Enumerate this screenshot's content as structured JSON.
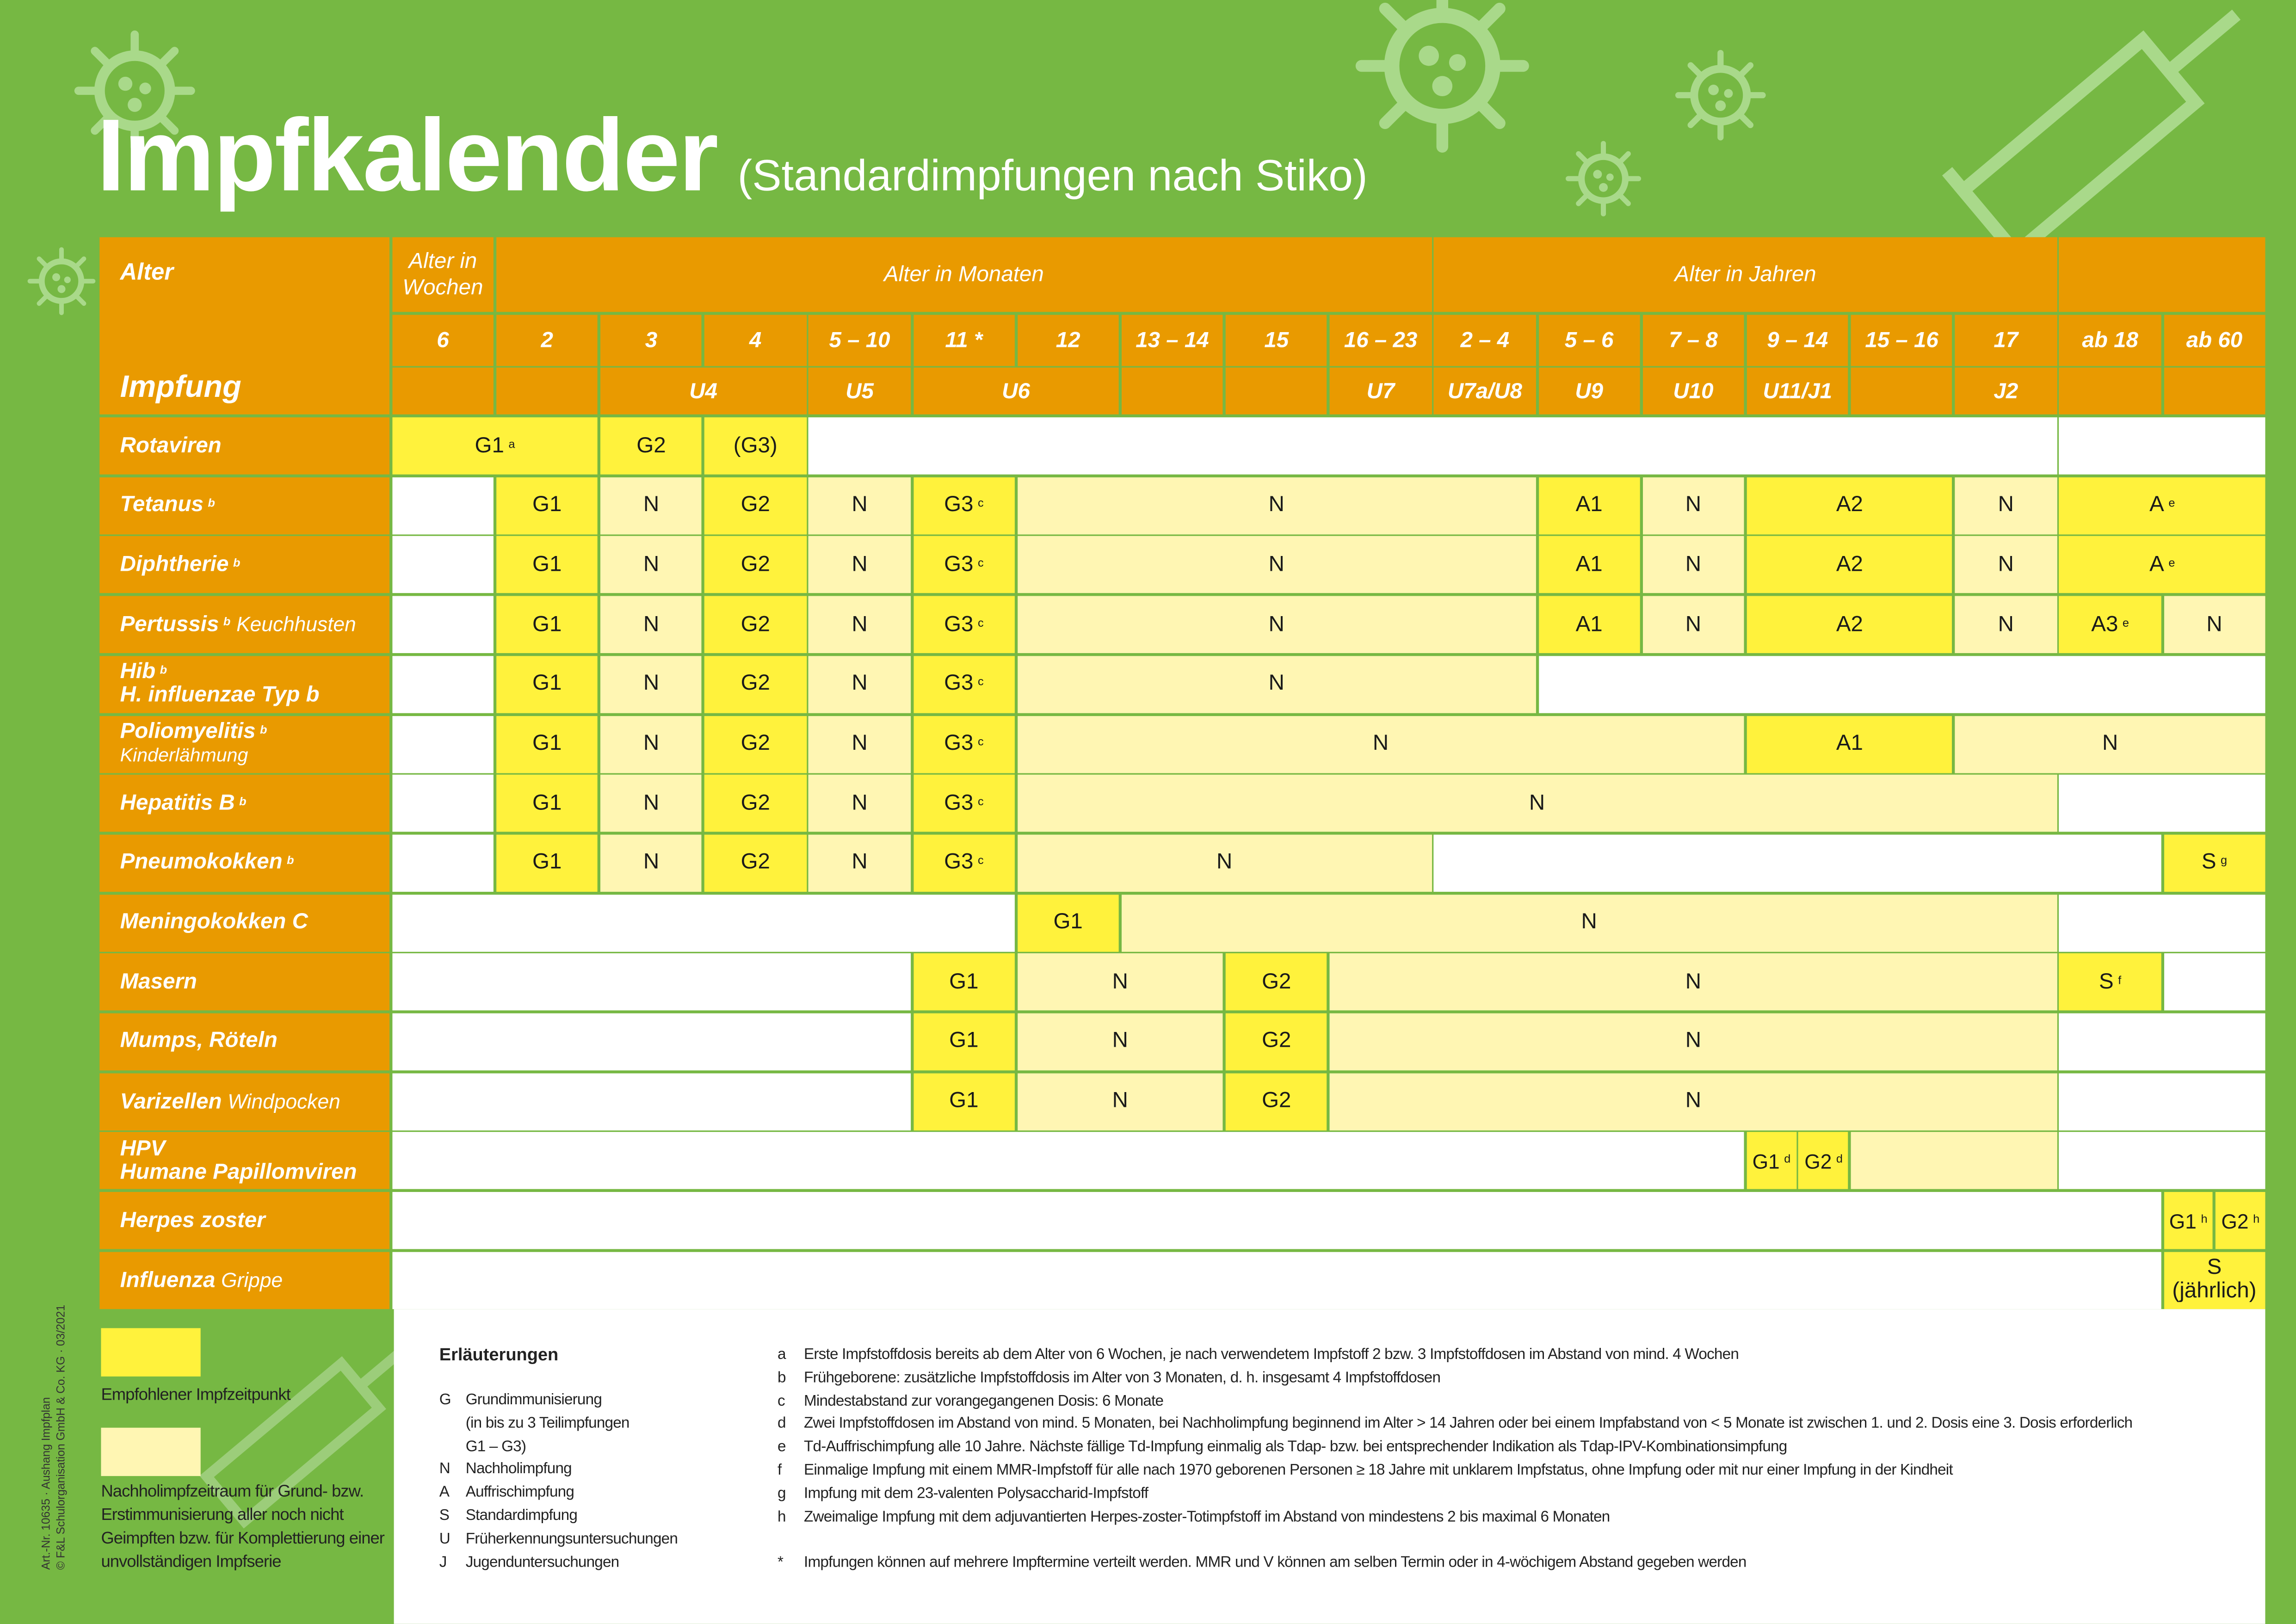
{
  "header": {
    "title": "Impfkalender",
    "subtitle": "(Standardimpfungen nach Stiko)"
  },
  "colors": {
    "background": "#76b843",
    "header": "#e99a00",
    "recommended": "#fff23c",
    "catchup": "#fff6b3"
  },
  "table": {
    "alter_label": "Alter",
    "impfung_label": "Impfung",
    "groups": [
      {
        "label": "Alter in Wochen",
        "span": 1
      },
      {
        "label": "Alter in Monaten",
        "span": 9
      },
      {
        "label": "Alter in Jahren",
        "span": 6
      },
      {
        "label": "",
        "span": 2
      }
    ],
    "ages": [
      "6",
      "2",
      "3",
      "4",
      "5 – 10",
      "11 *",
      "12",
      "13 – 14",
      "15",
      "16 – 23",
      "2 – 4",
      "5 – 6",
      "7 – 8",
      "9 – 14",
      "15 – 16",
      "17",
      "ab 18",
      "ab 60"
    ],
    "exams": [
      {
        "label": "",
        "span": 1
      },
      {
        "label": "",
        "span": 1
      },
      {
        "label": "U4",
        "span": 2
      },
      {
        "label": "U5",
        "span": 1
      },
      {
        "label": "U6",
        "span": 2
      },
      {
        "label": "",
        "span": 1
      },
      {
        "label": "",
        "span": 1
      },
      {
        "label": "U7",
        "span": 1
      },
      {
        "label": "U7a/U8",
        "span": 1
      },
      {
        "label": "U9",
        "span": 1
      },
      {
        "label": "U10",
        "span": 1
      },
      {
        "label": "U11/J1",
        "span": 1
      },
      {
        "label": "",
        "span": 1
      },
      {
        "label": "J2",
        "span": 1
      },
      {
        "label": "",
        "span": 1
      },
      {
        "label": "",
        "span": 1
      }
    ],
    "rows": [
      {
        "name": "Rotaviren",
        "sup": "",
        "sub": "",
        "line2": "",
        "cells": [
          {
            "text": "G1",
            "sup": "a",
            "fill": "y",
            "span": 2
          },
          {
            "text": "G2",
            "fill": "y",
            "span": 1
          },
          {
            "text": "(G3)",
            "fill": "y",
            "span": 1
          },
          {
            "text": "",
            "fill": "w",
            "span": 12
          },
          {
            "text": "",
            "fill": "w",
            "span": 2
          }
        ]
      },
      {
        "name": "Tetanus",
        "sup": "b",
        "sub": "",
        "line2": "",
        "cells": [
          {
            "text": "",
            "fill": "w",
            "span": 1
          },
          {
            "text": "G1",
            "fill": "y",
            "span": 1
          },
          {
            "text": "N",
            "fill": "l",
            "span": 1
          },
          {
            "text": "G2",
            "fill": "y",
            "span": 1
          },
          {
            "text": "N",
            "fill": "l",
            "span": 1
          },
          {
            "text": "G3",
            "sup": "c",
            "fill": "y",
            "span": 1
          },
          {
            "text": "N",
            "fill": "l",
            "span": 5
          },
          {
            "text": "A1",
            "fill": "y",
            "span": 1
          },
          {
            "text": "N",
            "fill": "l",
            "span": 1
          },
          {
            "text": "A2",
            "fill": "y",
            "span": 2
          },
          {
            "text": "N",
            "fill": "l",
            "span": 1
          },
          {
            "text": "A",
            "sup": "e",
            "fill": "y",
            "span": 2
          }
        ]
      },
      {
        "name": "Diphtherie",
        "sup": "b",
        "sub": "",
        "line2": "",
        "cells": [
          {
            "text": "",
            "fill": "w",
            "span": 1
          },
          {
            "text": "G1",
            "fill": "y",
            "span": 1
          },
          {
            "text": "N",
            "fill": "l",
            "span": 1
          },
          {
            "text": "G2",
            "fill": "y",
            "span": 1
          },
          {
            "text": "N",
            "fill": "l",
            "span": 1
          },
          {
            "text": "G3",
            "sup": "c",
            "fill": "y",
            "span": 1
          },
          {
            "text": "N",
            "fill": "l",
            "span": 5
          },
          {
            "text": "A1",
            "fill": "y",
            "span": 1
          },
          {
            "text": "N",
            "fill": "l",
            "span": 1
          },
          {
            "text": "A2",
            "fill": "y",
            "span": 2
          },
          {
            "text": "N",
            "fill": "l",
            "span": 1
          },
          {
            "text": "A",
            "sup": "e",
            "fill": "y",
            "span": 2
          }
        ]
      },
      {
        "name": "Pertussis",
        "sup": "b",
        "sub": "Keuchhusten",
        "line2": "",
        "cells": [
          {
            "text": "",
            "fill": "w",
            "span": 1
          },
          {
            "text": "G1",
            "fill": "y",
            "span": 1
          },
          {
            "text": "N",
            "fill": "l",
            "span": 1
          },
          {
            "text": "G2",
            "fill": "y",
            "span": 1
          },
          {
            "text": "N",
            "fill": "l",
            "span": 1
          },
          {
            "text": "G3",
            "sup": "c",
            "fill": "y",
            "span": 1
          },
          {
            "text": "N",
            "fill": "l",
            "span": 5
          },
          {
            "text": "A1",
            "fill": "y",
            "span": 1
          },
          {
            "text": "N",
            "fill": "l",
            "span": 1
          },
          {
            "text": "A2",
            "fill": "y",
            "span": 2
          },
          {
            "text": "N",
            "fill": "l",
            "span": 1
          },
          {
            "text": "A3",
            "sup": "e",
            "fill": "y",
            "span": 1
          },
          {
            "text": "N",
            "fill": "l",
            "span": 1
          }
        ]
      },
      {
        "name": "Hib",
        "sup": "b",
        "sub": "",
        "line2": "H. influenzae Typ b",
        "line2_bold": true,
        "cells": [
          {
            "text": "",
            "fill": "w",
            "span": 1
          },
          {
            "text": "G1",
            "fill": "y",
            "span": 1
          },
          {
            "text": "N",
            "fill": "l",
            "span": 1
          },
          {
            "text": "G2",
            "fill": "y",
            "span": 1
          },
          {
            "text": "N",
            "fill": "l",
            "span": 1
          },
          {
            "text": "G3",
            "sup": "c",
            "fill": "y",
            "span": 1
          },
          {
            "text": "N",
            "fill": "l",
            "span": 5
          },
          {
            "text": "",
            "fill": "w",
            "span": 7
          }
        ]
      },
      {
        "name": "Poliomyelitis",
        "sup": "b",
        "sub": "",
        "line2": "Kinderlähmung",
        "cells": [
          {
            "text": "",
            "fill": "w",
            "span": 1
          },
          {
            "text": "G1",
            "fill": "y",
            "span": 1
          },
          {
            "text": "N",
            "fill": "l",
            "span": 1
          },
          {
            "text": "G2",
            "fill": "y",
            "span": 1
          },
          {
            "text": "N",
            "fill": "l",
            "span": 1
          },
          {
            "text": "G3",
            "sup": "c",
            "fill": "y",
            "span": 1
          },
          {
            "text": "N",
            "fill": "l",
            "span": 7
          },
          {
            "text": "A1",
            "fill": "y",
            "span": 2
          },
          {
            "text": "N",
            "fill": "l",
            "span": 3
          }
        ]
      },
      {
        "name": "Hepatitis B",
        "sup": "b",
        "sub": "",
        "line2": "",
        "cells": [
          {
            "text": "",
            "fill": "w",
            "span": 1
          },
          {
            "text": "G1",
            "fill": "y",
            "span": 1
          },
          {
            "text": "N",
            "fill": "l",
            "span": 1
          },
          {
            "text": "G2",
            "fill": "y",
            "span": 1
          },
          {
            "text": "N",
            "fill": "l",
            "span": 1
          },
          {
            "text": "G3",
            "sup": "c",
            "fill": "y",
            "span": 1
          },
          {
            "text": "N",
            "fill": "l",
            "span": 10
          },
          {
            "text": "",
            "fill": "w",
            "span": 2
          }
        ]
      },
      {
        "name": "Pneumokokken",
        "sup": "b",
        "sub": "",
        "line2": "",
        "cells": [
          {
            "text": "",
            "fill": "w",
            "span": 1
          },
          {
            "text": "G1",
            "fill": "y",
            "span": 1
          },
          {
            "text": "N",
            "fill": "l",
            "span": 1
          },
          {
            "text": "G2",
            "fill": "y",
            "span": 1
          },
          {
            "text": "N",
            "fill": "l",
            "span": 1
          },
          {
            "text": "G3",
            "sup": "c",
            "fill": "y",
            "span": 1
          },
          {
            "text": "N",
            "fill": "l",
            "span": 4
          },
          {
            "text": "",
            "fill": "w",
            "span": 7
          },
          {
            "text": "S",
            "sup": "g",
            "fill": "y",
            "span": 1
          }
        ]
      },
      {
        "name": "Meningokokken C",
        "sup": "",
        "sub": "",
        "line2": "",
        "cells": [
          {
            "text": "",
            "fill": "w",
            "span": 6
          },
          {
            "text": "G1",
            "fill": "y",
            "span": 1
          },
          {
            "text": "N",
            "fill": "l",
            "span": 9
          },
          {
            "text": "",
            "fill": "w",
            "span": 2
          }
        ]
      },
      {
        "name": "Masern",
        "sup": "",
        "sub": "",
        "line2": "",
        "cells": [
          {
            "text": "",
            "fill": "w",
            "span": 5
          },
          {
            "text": "G1",
            "fill": "y",
            "span": 1
          },
          {
            "text": "N",
            "fill": "l",
            "span": 2
          },
          {
            "text": "G2",
            "fill": "y",
            "span": 1
          },
          {
            "text": "N",
            "fill": "l",
            "span": 7
          },
          {
            "text": "S",
            "sup": "f",
            "fill": "y",
            "span": 1
          },
          {
            "text": "",
            "fill": "w",
            "span": 1
          }
        ]
      },
      {
        "name": "Mumps, Röteln",
        "sup": "",
        "sub": "",
        "line2": "",
        "cells": [
          {
            "text": "",
            "fill": "w",
            "span": 5
          },
          {
            "text": "G1",
            "fill": "y",
            "span": 1
          },
          {
            "text": "N",
            "fill": "l",
            "span": 2
          },
          {
            "text": "G2",
            "fill": "y",
            "span": 1
          },
          {
            "text": "N",
            "fill": "l",
            "span": 7
          },
          {
            "text": "",
            "fill": "w",
            "span": 2
          }
        ]
      },
      {
        "name": "Varizellen",
        "sup": "",
        "sub": "Windpocken",
        "line2": "",
        "cells": [
          {
            "text": "",
            "fill": "w",
            "span": 5
          },
          {
            "text": "G1",
            "fill": "y",
            "span": 1
          },
          {
            "text": "N",
            "fill": "l",
            "span": 2
          },
          {
            "text": "G2",
            "fill": "y",
            "span": 1
          },
          {
            "text": "N",
            "fill": "l",
            "span": 7
          },
          {
            "text": "",
            "fill": "w",
            "span": 2
          }
        ]
      },
      {
        "name": "HPV",
        "sup": "",
        "sub": "",
        "line2": "Humane Papillomviren",
        "line2_bold": true,
        "cells": [
          {
            "text": "",
            "fill": "w",
            "span": 13
          },
          {
            "split": [
              {
                "text": "G1",
                "sup": "d",
                "fill": "y"
              },
              {
                "text": "G2",
                "sup": "d",
                "fill": "y"
              }
            ],
            "span": 1
          },
          {
            "text": "",
            "fill": "l",
            "span": 2
          },
          {
            "text": "",
            "fill": "w",
            "span": 2
          }
        ]
      },
      {
        "name": "Herpes zoster",
        "sup": "",
        "sub": "",
        "line2": "",
        "cells": [
          {
            "text": "",
            "fill": "w",
            "span": 17
          },
          {
            "split": [
              {
                "text": "G1",
                "sup": "h",
                "fill": "y"
              },
              {
                "text": "G2",
                "sup": "h",
                "fill": "y"
              }
            ],
            "span": 1
          }
        ]
      },
      {
        "name": "Influenza",
        "sup": "",
        "sub": "Grippe",
        "line2": "",
        "cells": [
          {
            "text": "",
            "fill": "w",
            "span": 17
          },
          {
            "text": "S\n(jährlich)",
            "fill": "y",
            "span": 1
          }
        ]
      }
    ]
  },
  "legend": {
    "recommended": "Empfohlener Impfzeitpunkt",
    "catchup": "Nachholimpfzeitraum für Grund- bzw. Erstimmunisierung aller noch nicht Geimpften bzw. für Komplettierung einer unvollständigen Impfserie"
  },
  "explanations": {
    "title": "Erläuterungen",
    "abbreviations": [
      {
        "key": "G",
        "text": "Grundimmunisierung\n(in bis zu 3 Teilimpfungen\nG1 – G3)"
      },
      {
        "key": "N",
        "text": "Nachholimpfung"
      },
      {
        "key": "A",
        "text": "Auffrischimpfung"
      },
      {
        "key": "S",
        "text": "Standardimpfung"
      },
      {
        "key": "U",
        "text": "Früherkennungsuntersuchungen"
      },
      {
        "key": "J",
        "text": "Jugenduntersuchungen"
      }
    ],
    "footnotes": [
      {
        "key": "a",
        "text": "Erste Impfstoffdosis bereits ab dem Alter von 6 Wochen, je nach verwendetem Impfstoff 2 bzw. 3 Impfstoffdosen im Abstand von mind. 4 Wochen"
      },
      {
        "key": "b",
        "text": "Frühgeborene: zusätzliche Impfstoffdosis im Alter von 3 Monaten, d. h. insgesamt 4 Impfstoffdosen"
      },
      {
        "key": "c",
        "text": "Mindestabstand zur vorangegangenen Dosis: 6 Monate"
      },
      {
        "key": "d",
        "text": "Zwei Impfstoffdosen im Abstand von mind. 5 Monaten, bei Nachholimpfung beginnend im Alter > 14 Jahren oder bei einem Impfabstand von < 5 Monate ist zwischen 1. und 2. Dosis eine 3. Dosis erforderlich"
      },
      {
        "key": "e",
        "text": "Td-Auffrischimpfung alle 10 Jahre. Nächste fällige Td-Impfung einmalig als Tdap- bzw. bei entsprechender Indikation als Tdap-IPV-Kombinationsimpfung"
      },
      {
        "key": "f",
        "text": "Einmalige Impfung mit einem MMR-Impfstoff für alle nach 1970 geborenen Personen ≥ 18 Jahre mit unklarem Impfstatus, ohne Impfung oder mit nur einer Impfung in der Kindheit"
      },
      {
        "key": "g",
        "text": "Impfung mit dem 23-valenten Polysaccharid-Impfstoff"
      },
      {
        "key": "h",
        "text": "Zweimalige Impfung mit dem adjuvantierten Herpes-zoster-Totimpfstoff im Abstand von mindestens 2 bis maximal 6 Monaten"
      }
    ],
    "star": {
      "key": "*",
      "text": "Impfungen können auf mehrere Impftermine verteilt werden. MMR und V können am selben Termin oder in 4-wöchigem Abstand gegeben werden"
    }
  },
  "imprint": {
    "line1": "Art.-Nr. 10635 · Aushang Impfplan",
    "line2": "© F&L Schulorganisation GmbH & Co. KG · 03/2021"
  }
}
